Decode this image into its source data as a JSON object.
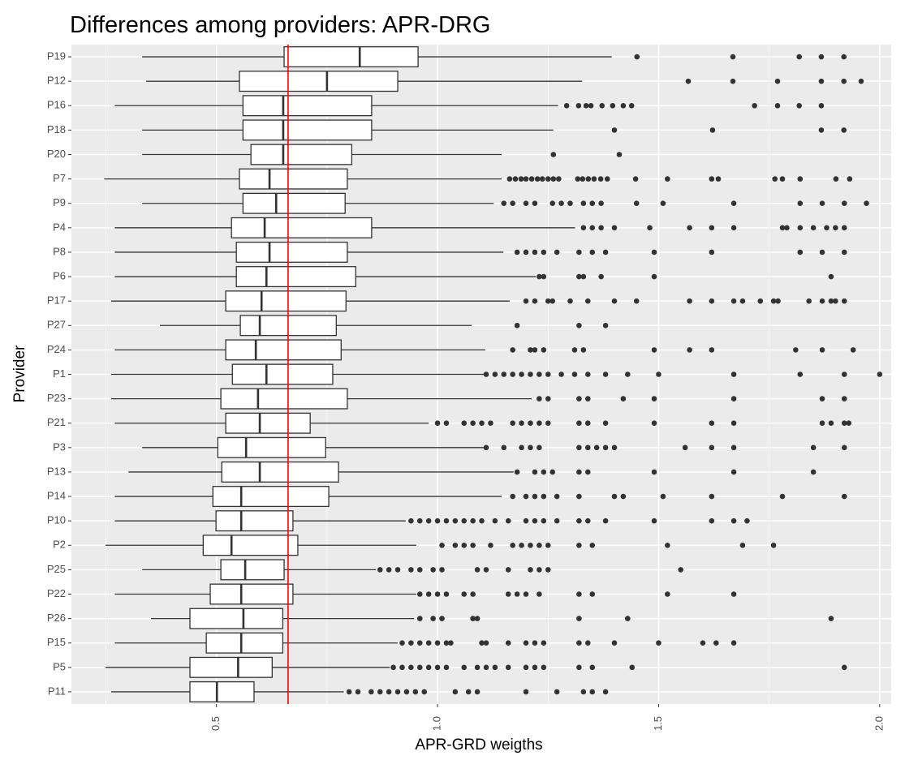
{
  "chart_data": {
    "type": "boxplot",
    "orientation": "horizontal",
    "title": "Differences among providers: APR-DRG",
    "x_label": "APR-GRD weigths",
    "y_label": "Provider",
    "xlim": [
      0.172,
      2.026
    ],
    "xticks": [
      0.5,
      {
        "value": 1,
        "label": "1.0"
      },
      1.5,
      {
        "value": 2,
        "label": "2.0"
      }
    ],
    "grid": true,
    "box_fill": "#ffffff",
    "box_stroke": "#333333",
    "outlier_color": "#333333",
    "vline": {
      "value": 0.662,
      "color": "#ff0000"
    },
    "categories": [
      "P19",
      "P12",
      "P16",
      "P18",
      "P20",
      "P7",
      "P9",
      "P4",
      "P8",
      "P6",
      "P17",
      "P27",
      "P24",
      "P1",
      "P23",
      "P21",
      "P3",
      "P13",
      "P14",
      "P10",
      "P2",
      "P25",
      "P22",
      "P26",
      "P15",
      "P5",
      "P11"
    ],
    "boxes": [
      {
        "low": 0.332,
        "q1": 0.653,
        "median": 0.824,
        "q3": 0.956,
        "high": 1.394,
        "outliers": [
          1.451,
          1.668,
          1.818,
          1.868,
          1.919
        ]
      },
      {
        "low": 0.341,
        "q1": 0.552,
        "median": 0.75,
        "q3": 0.91,
        "high": 1.327,
        "outliers": [
          1.567,
          1.668,
          1.769,
          1.868,
          1.919,
          1.958
        ]
      },
      {
        "low": 0.27,
        "q1": 0.56,
        "median": 0.651,
        "q3": 0.851,
        "high": 1.273,
        "outliers": [
          1.292,
          1.319,
          1.336,
          1.347,
          1.372,
          1.396,
          1.42,
          1.439,
          1.717,
          1.769,
          1.818,
          1.868
        ]
      },
      {
        "low": 0.332,
        "q1": 0.56,
        "median": 0.651,
        "q3": 0.851,
        "high": 1.262,
        "outliers": [
          1.4,
          1.622,
          1.868,
          1.919
        ]
      },
      {
        "low": 0.332,
        "q1": 0.578,
        "median": 0.651,
        "q3": 0.806,
        "high": 1.145,
        "outliers": [
          1.262,
          1.411
        ]
      },
      {
        "low": 0.246,
        "q1": 0.552,
        "median": 0.62,
        "q3": 0.796,
        "high": 1.145,
        "outliers": [
          1.163,
          1.176,
          1.189,
          1.2,
          1.213,
          1.226,
          1.237,
          1.25,
          1.262,
          1.274,
          1.317,
          1.328,
          1.341,
          1.354,
          1.369,
          1.384,
          1.448,
          1.52,
          1.62,
          1.635,
          1.763,
          1.78,
          1.82,
          1.901,
          1.932
        ]
      },
      {
        "low": 0.332,
        "q1": 0.56,
        "median": 0.635,
        "q3": 0.791,
        "high": 1.127,
        "outliers": [
          1.15,
          1.17,
          1.2,
          1.22,
          1.26,
          1.28,
          1.3,
          1.33,
          1.35,
          1.37,
          1.45,
          1.51,
          1.67,
          1.82,
          1.87,
          1.92,
          1.97
        ]
      },
      {
        "low": 0.27,
        "q1": 0.534,
        "median": 0.609,
        "q3": 0.851,
        "high": 1.311,
        "outliers": [
          1.33,
          1.35,
          1.37,
          1.4,
          1.48,
          1.57,
          1.62,
          1.67,
          1.78,
          1.79,
          1.82,
          1.85,
          1.88,
          1.9,
          1.92
        ]
      },
      {
        "low": 0.27,
        "q1": 0.545,
        "median": 0.62,
        "q3": 0.796,
        "high": 1.149,
        "outliers": [
          1.18,
          1.2,
          1.22,
          1.24,
          1.27,
          1.32,
          1.35,
          1.38,
          1.49,
          1.62,
          1.82,
          1.87,
          1.92
        ]
      },
      {
        "low": 0.27,
        "q1": 0.545,
        "median": 0.613,
        "q3": 0.815,
        "high": 1.222,
        "outliers": [
          1.23,
          1.24,
          1.32,
          1.33,
          1.37,
          1.49,
          1.89
        ]
      },
      {
        "low": 0.262,
        "q1": 0.521,
        "median": 0.602,
        "q3": 0.793,
        "high": 1.163,
        "outliers": [
          1.2,
          1.22,
          1.25,
          1.26,
          1.3,
          1.34,
          1.4,
          1.45,
          1.57,
          1.62,
          1.67,
          1.69,
          1.73,
          1.76,
          1.77,
          1.84,
          1.87,
          1.89,
          1.9,
          1.92
        ]
      },
      {
        "low": 0.372,
        "q1": 0.554,
        "median": 0.598,
        "q3": 0.771,
        "high": 1.077,
        "outliers": [
          1.18,
          1.32,
          1.38
        ]
      },
      {
        "low": 0.27,
        "q1": 0.521,
        "median": 0.589,
        "q3": 0.782,
        "high": 1.108,
        "outliers": [
          1.17,
          1.21,
          1.22,
          1.24,
          1.31,
          1.33,
          1.49,
          1.57,
          1.62,
          1.81,
          1.87,
          1.94
        ]
      },
      {
        "low": 0.262,
        "q1": 0.536,
        "median": 0.613,
        "q3": 0.763,
        "high": 1.108,
        "outliers": [
          1.11,
          1.13,
          1.15,
          1.17,
          1.19,
          1.21,
          1.23,
          1.25,
          1.28,
          1.31,
          1.34,
          1.38,
          1.43,
          1.5,
          1.67,
          1.82,
          1.92,
          2.0
        ]
      },
      {
        "low": 0.262,
        "q1": 0.51,
        "median": 0.594,
        "q3": 0.796,
        "high": 1.213,
        "outliers": [
          1.23,
          1.25,
          1.32,
          1.34,
          1.42,
          1.49,
          1.67,
          1.87,
          1.92
        ]
      },
      {
        "low": 0.27,
        "q1": 0.521,
        "median": 0.598,
        "q3": 0.712,
        "high": 0.98,
        "outliers": [
          1.0,
          1.02,
          1.06,
          1.08,
          1.1,
          1.12,
          1.17,
          1.19,
          1.21,
          1.23,
          1.25,
          1.32,
          1.34,
          1.38,
          1.49,
          1.62,
          1.67,
          1.87,
          1.89,
          1.92,
          1.93
        ]
      },
      {
        "low": 0.332,
        "q1": 0.503,
        "median": 0.567,
        "q3": 0.747,
        "high": 1.108,
        "outliers": [
          1.11,
          1.15,
          1.19,
          1.21,
          1.23,
          1.32,
          1.34,
          1.36,
          1.38,
          1.4,
          1.56,
          1.62,
          1.67,
          1.85,
          1.92
        ]
      },
      {
        "low": 0.301,
        "q1": 0.512,
        "median": 0.598,
        "q3": 0.776,
        "high": 1.172,
        "outliers": [
          1.18,
          1.22,
          1.24,
          1.26,
          1.32,
          1.34,
          1.49,
          1.67,
          1.85
        ]
      },
      {
        "low": 0.27,
        "q1": 0.492,
        "median": 0.556,
        "q3": 0.754,
        "high": 1.145,
        "outliers": [
          1.17,
          1.2,
          1.22,
          1.24,
          1.27,
          1.32,
          1.4,
          1.42,
          1.51,
          1.62,
          1.78,
          1.92
        ]
      },
      {
        "low": 0.27,
        "q1": 0.499,
        "median": 0.556,
        "q3": 0.673,
        "high": 0.928,
        "outliers": [
          0.94,
          0.96,
          0.98,
          1.0,
          1.02,
          1.04,
          1.06,
          1.08,
          1.1,
          1.13,
          1.16,
          1.2,
          1.22,
          1.24,
          1.27,
          1.32,
          1.34,
          1.38,
          1.49,
          1.62,
          1.67,
          1.7
        ]
      },
      {
        "low": 0.249,
        "q1": 0.47,
        "median": 0.534,
        "q3": 0.684,
        "high": 0.952,
        "outliers": [
          1.01,
          1.04,
          1.06,
          1.08,
          1.12,
          1.17,
          1.19,
          1.21,
          1.23,
          1.25,
          1.32,
          1.35,
          1.52,
          1.69,
          1.76
        ]
      },
      {
        "low": 0.332,
        "q1": 0.51,
        "median": 0.565,
        "q3": 0.653,
        "high": 0.861,
        "outliers": [
          0.87,
          0.89,
          0.91,
          0.94,
          0.96,
          0.99,
          1.01,
          1.09,
          1.11,
          1.16,
          1.21,
          1.23,
          1.25,
          1.55
        ]
      },
      {
        "low": 0.27,
        "q1": 0.486,
        "median": 0.556,
        "q3": 0.673,
        "high": 0.952,
        "outliers": [
          0.96,
          0.98,
          1.0,
          1.02,
          1.06,
          1.08,
          1.16,
          1.18,
          1.2,
          1.23,
          1.32,
          1.35,
          1.52,
          1.67
        ]
      },
      {
        "low": 0.352,
        "q1": 0.44,
        "median": 0.561,
        "q3": 0.65,
        "high": 0.947,
        "outliers": [
          0.96,
          0.99,
          1.01,
          1.08,
          1.09,
          1.32,
          1.43,
          1.89
        ]
      },
      {
        "low": 0.27,
        "q1": 0.477,
        "median": 0.556,
        "q3": 0.65,
        "high": 0.91,
        "outliers": [
          0.92,
          0.94,
          0.96,
          0.98,
          1.0,
          1.02,
          1.03,
          1.1,
          1.11,
          1.16,
          1.2,
          1.22,
          1.24,
          1.32,
          1.34,
          1.4,
          1.5,
          1.6,
          1.63,
          1.67
        ]
      },
      {
        "low": 0.249,
        "q1": 0.44,
        "median": 0.549,
        "q3": 0.626,
        "high": 0.892,
        "outliers": [
          0.9,
          0.92,
          0.94,
          0.96,
          0.98,
          1.0,
          1.02,
          1.06,
          1.09,
          1.11,
          1.13,
          1.16,
          1.2,
          1.22,
          1.24,
          1.32,
          1.35,
          1.44,
          1.92
        ]
      },
      {
        "low": 0.262,
        "q1": 0.44,
        "median": 0.501,
        "q3": 0.585,
        "high": 0.788,
        "outliers": [
          0.8,
          0.82,
          0.85,
          0.87,
          0.89,
          0.91,
          0.93,
          0.95,
          0.97,
          1.04,
          1.07,
          1.09,
          1.2,
          1.27,
          1.33,
          1.35,
          1.38
        ]
      }
    ]
  }
}
